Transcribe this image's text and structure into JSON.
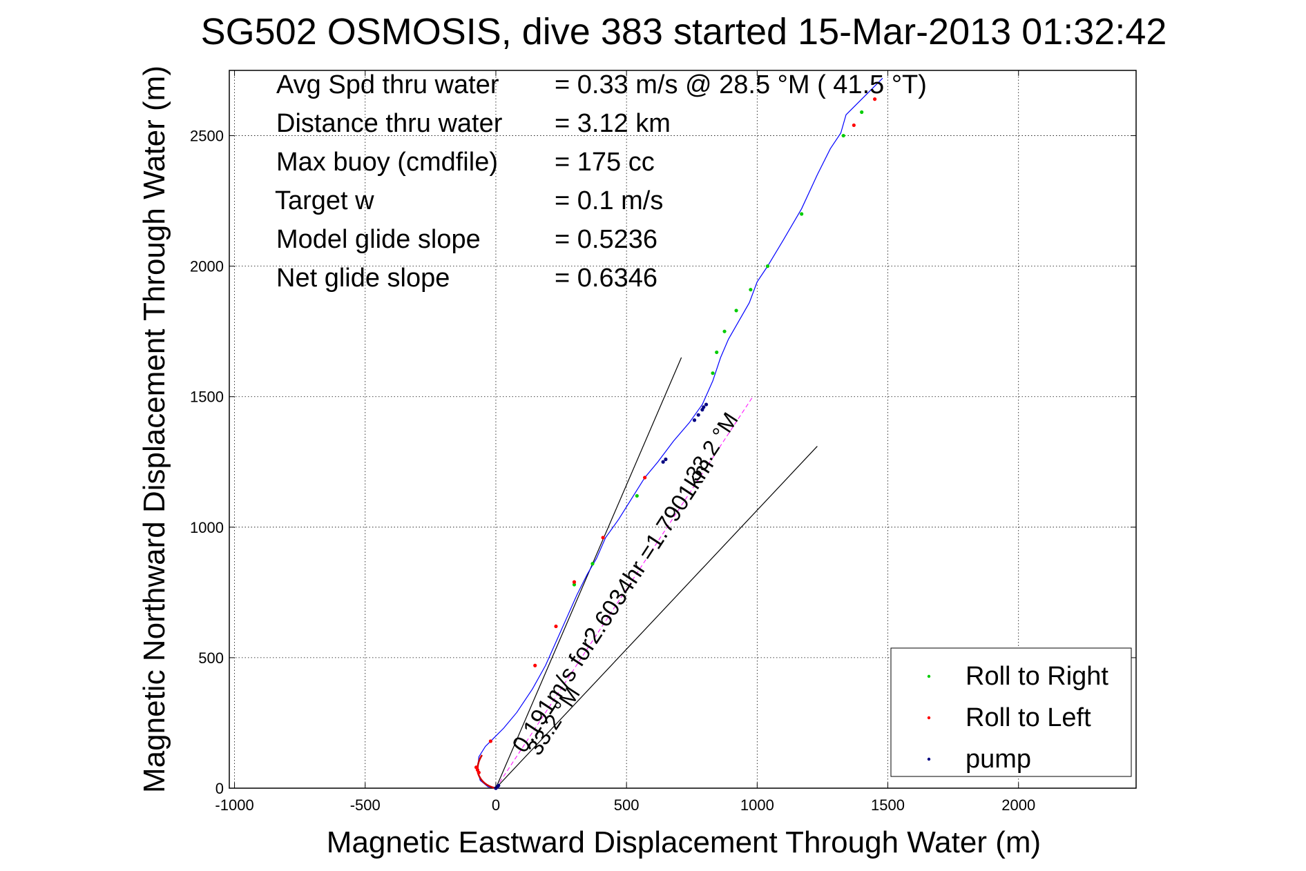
{
  "chart_data": {
    "type": "scatter",
    "title": "SG502 OSMOSIS, dive 383 started 15-Mar-2013 01:32:42",
    "xlabel": "Magnetic Eastward Displacement Through Water (m)",
    "ylabel": "Magnetic Northward Displacement Through Water (m)",
    "xlim": [
      -1020,
      2450
    ],
    "ylim": [
      0,
      2750
    ],
    "xticks": [
      -1000,
      -500,
      0,
      500,
      1000,
      1500,
      2000
    ],
    "yticks": [
      0,
      500,
      1000,
      1500,
      2000,
      2500
    ],
    "grid": true,
    "legend_position": "bottom-right",
    "stats": [
      {
        "label": "Avg Spd thru water",
        "value": "=  0.33 m/s @  28.5 °M ( 41.5 °T)"
      },
      {
        "label": "Distance thru water",
        "value": "=  3.12 km"
      },
      {
        "label": "Max buoy (cmdfile)",
        "value": "= 175 cc"
      },
      {
        "label": "Target w",
        "value": "= 0.1 m/s"
      },
      {
        "label": "Model glide slope",
        "value": "= 0.5236"
      },
      {
        "label": "Net glide slope",
        "value": "= 0.6346"
      }
    ],
    "annotations": [
      {
        "text": "0.191m/s for2.6034hr =1.7901km",
        "x": 110,
        "y": 130,
        "angle_deg": 33.2
      },
      {
        "text": "33.2 °M",
        "x": 770,
        "y": 1170,
        "angle_deg": 33.2
      },
      {
        "text": "33.2 °M",
        "x": 165,
        "y": 120,
        "angle_deg": 33.2
      }
    ],
    "reference_lines": [
      {
        "name": "limit-left",
        "x": [
          0,
          710
        ],
        "y": [
          0,
          1650
        ]
      },
      {
        "name": "limit-right",
        "x": [
          0,
          1230
        ],
        "y": [
          0,
          1310
        ]
      },
      {
        "name": "current",
        "x": [
          0,
          980
        ],
        "y": [
          0,
          1495
        ]
      }
    ],
    "track": {
      "name": "glider track",
      "color": "#0000ff",
      "x": [
        0,
        -30,
        -60,
        -70,
        -65,
        -40,
        -10,
        30,
        80,
        140,
        190,
        230,
        270,
        310,
        350,
        385,
        420,
        470,
        520,
        570,
        620,
        680,
        740,
        790,
        830,
        860,
        890,
        930,
        970,
        1000,
        1040,
        1100,
        1170,
        1230,
        1280,
        1320,
        1340,
        1380,
        1420,
        1480
      ],
      "y": [
        0,
        5,
        30,
        70,
        120,
        160,
        190,
        230,
        290,
        380,
        470,
        560,
        650,
        740,
        820,
        880,
        960,
        1030,
        1110,
        1190,
        1250,
        1330,
        1400,
        1470,
        1560,
        1650,
        1720,
        1790,
        1860,
        1940,
        2000,
        2100,
        2220,
        2350,
        2450,
        2510,
        2580,
        2620,
        2660,
        2720
      ]
    },
    "series": [
      {
        "name": "Roll to Right",
        "color": "#00cc00",
        "x": [
          540,
          370,
          1330,
          1170,
          1040,
          975,
          920,
          875,
          845,
          830,
          300,
          1400
        ],
        "y": [
          1120,
          860,
          2500,
          2200,
          2000,
          1910,
          1830,
          1750,
          1670,
          1590,
          780,
          2590
        ]
      },
      {
        "name": "Roll to Left",
        "color": "#ff0000",
        "x": [
          -75,
          -70,
          -65,
          -20,
          150,
          230,
          300,
          410,
          570,
          1370,
          1450
        ],
        "y": [
          80,
          70,
          60,
          180,
          470,
          620,
          790,
          960,
          1190,
          2540,
          2640
        ]
      },
      {
        "name": "pump",
        "color": "#000080",
        "x": [
          760,
          775,
          790,
          795,
          805,
          650,
          640,
          0,
          5,
          10
        ],
        "y": [
          1410,
          1430,
          1450,
          1460,
          1470,
          1260,
          1250,
          0,
          5,
          10
        ]
      }
    ],
    "legend": [
      "Roll to Right",
      "Roll to Left",
      "pump"
    ]
  }
}
